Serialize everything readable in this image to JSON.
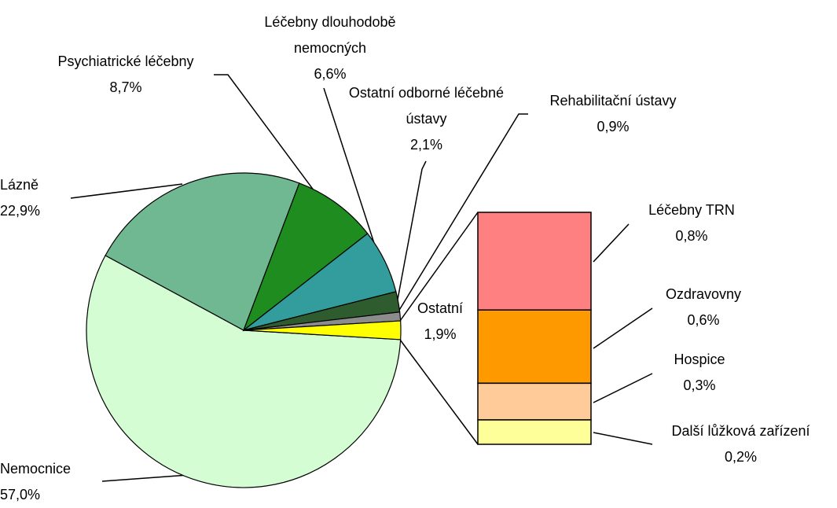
{
  "chart_data": {
    "type": "pie-of-bar",
    "categories": [
      "Nemocnice",
      "Lázně",
      "Psychiatrické léčebny",
      "Léčebny dlouhodobě nemocných",
      "Ostatní odborné léčebné ústavy",
      "Rehabilitační ústavy",
      "Ostatní"
    ],
    "values": [
      57.0,
      22.9,
      8.7,
      6.6,
      2.1,
      0.9,
      1.9
    ],
    "value_labels": [
      "57,0%",
      "22,9%",
      "8,7%",
      "6,6%",
      "2,1%",
      "0,9%",
      "1,9%"
    ],
    "colors": [
      "#d4fdd4",
      "#6fb892",
      "#1e8c1e",
      "#339c9c",
      "#2f5c2f",
      "#8c8c8c",
      "#ffff00"
    ],
    "breakdown": {
      "categories": [
        "Léčebny TRN",
        "Ozdravovny",
        "Hospice",
        "Další lůžková zařízení"
      ],
      "values": [
        0.8,
        0.6,
        0.3,
        0.2
      ],
      "value_labels": [
        "0,8%",
        "0,6%",
        "0,3%",
        "0,2%"
      ],
      "colors": [
        "#ff8080",
        "#ff9900",
        "#ffcc99",
        "#ffff99"
      ]
    }
  }
}
